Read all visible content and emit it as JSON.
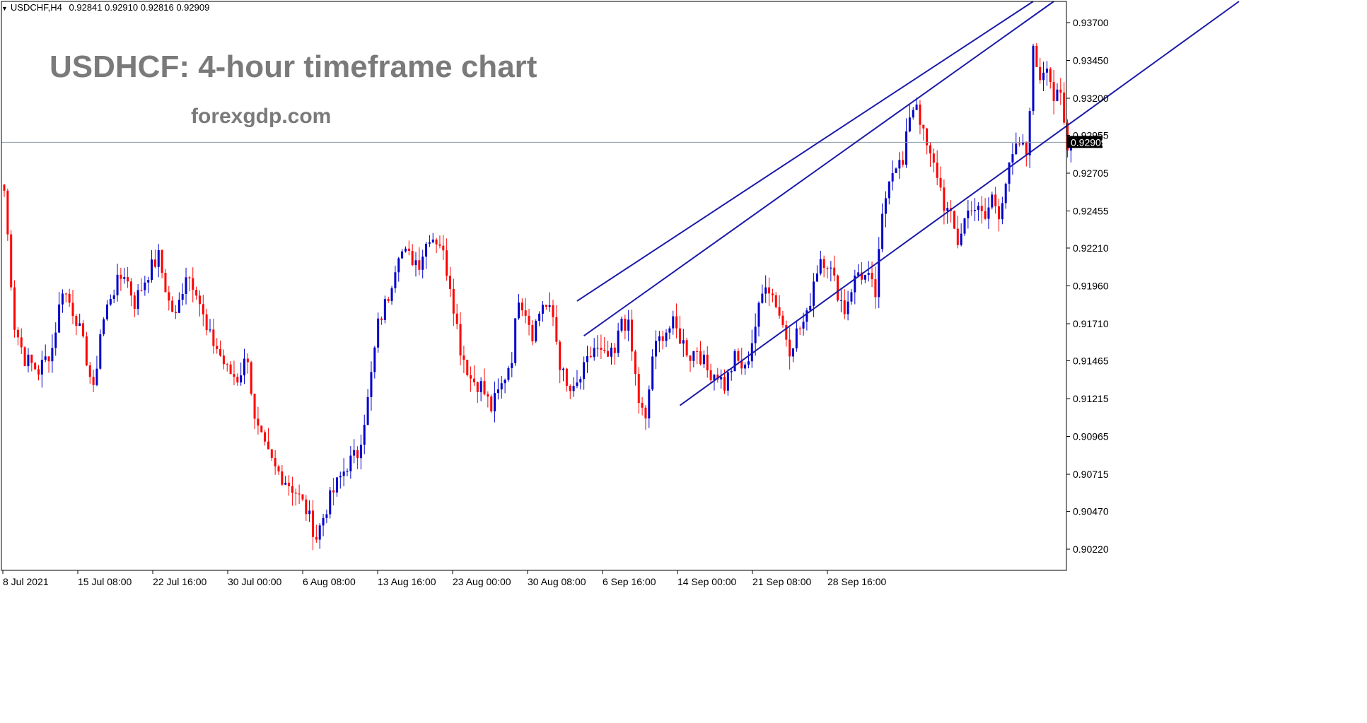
{
  "header": {
    "symbol": "USDCHF,H4",
    "quote": "0.92841 0.92910 0.92816 0.92909",
    "triangle_icon": "dropdown-triangle-icon"
  },
  "overlay": {
    "title": "USDHCF: 4-hour timeframe chart",
    "site": "forexgdp.com"
  },
  "colors": {
    "bull": "#0000cc",
    "bear": "#ff0000",
    "channel": "#1a1aa8",
    "current_price_line": "#8a9aaa",
    "price_box": "#000000",
    "frame": "#000000"
  },
  "chart_data": {
    "type": "candlestick",
    "symbol": "USDCHF",
    "timeframe": "H4",
    "current_price": "0.92909",
    "ylim": [
      0.9008,
      0.9384
    ],
    "y_ticks": [
      "0.93700",
      "0.93450",
      "0.93200",
      "0.92955",
      "0.92705",
      "0.92455",
      "0.92210",
      "0.91960",
      "0.91710",
      "0.91465",
      "0.91215",
      "0.90965",
      "0.90715",
      "0.90470",
      "0.90220"
    ],
    "x_ticks": [
      "8 Jul 2021",
      "15 Jul 08:00",
      "22 Jul 16:00",
      "30 Jul 00:00",
      "6 Aug 08:00",
      "13 Aug 16:00",
      "23 Aug 00:00",
      "30 Aug 08:00",
      "6 Sep 16:00",
      "14 Sep 00:00",
      "21 Sep 08:00",
      "28 Sep 16:00"
    ],
    "path": [
      [
        0,
        0.9259
      ],
      [
        3,
        0.917
      ],
      [
        6,
        0.9148
      ],
      [
        10,
        0.914
      ],
      [
        14,
        0.9155
      ],
      [
        17,
        0.9195
      ],
      [
        21,
        0.9175
      ],
      [
        24,
        0.9148
      ],
      [
        26,
        0.9125
      ],
      [
        28,
        0.9165
      ],
      [
        31,
        0.919
      ],
      [
        35,
        0.9205
      ],
      [
        38,
        0.9185
      ],
      [
        42,
        0.9205
      ],
      [
        45,
        0.9215
      ],
      [
        48,
        0.9185
      ],
      [
        50,
        0.9175
      ],
      [
        53,
        0.9205
      ],
      [
        56,
        0.9195
      ],
      [
        59,
        0.9165
      ],
      [
        62,
        0.9155
      ],
      [
        65,
        0.914
      ],
      [
        68,
        0.9135
      ],
      [
        71,
        0.915
      ],
      [
        73,
        0.9105
      ],
      [
        76,
        0.9088
      ],
      [
        79,
        0.9075
      ],
      [
        82,
        0.9068
      ],
      [
        85,
        0.906
      ],
      [
        88,
        0.9048
      ],
      [
        91,
        0.903
      ],
      [
        94,
        0.905
      ],
      [
        97,
        0.9065
      ],
      [
        100,
        0.9078
      ],
      [
        103,
        0.9085
      ],
      [
        106,
        0.912
      ],
      [
        109,
        0.917
      ],
      [
        112,
        0.919
      ],
      [
        115,
        0.922
      ],
      [
        118,
        0.9215
      ],
      [
        121,
        0.9212
      ],
      [
        124,
        0.923
      ],
      [
        127,
        0.9225
      ],
      [
        130,
        0.9198
      ],
      [
        133,
        0.9155
      ],
      [
        136,
        0.9135
      ],
      [
        139,
        0.913
      ],
      [
        142,
        0.9115
      ],
      [
        145,
        0.913
      ],
      [
        148,
        0.915
      ],
      [
        150,
        0.919
      ],
      [
        152,
        0.918
      ],
      [
        154,
        0.9165
      ],
      [
        157,
        0.9185
      ],
      [
        160,
        0.9175
      ],
      [
        162,
        0.9145
      ],
      [
        164,
        0.9128
      ],
      [
        166,
        0.9125
      ],
      [
        169,
        0.914
      ],
      [
        172,
        0.9155
      ],
      [
        175,
        0.9148
      ],
      [
        178,
        0.915
      ],
      [
        180,
        0.9175
      ],
      [
        182,
        0.9168
      ],
      [
        185,
        0.912
      ],
      [
        187,
        0.9105
      ],
      [
        189,
        0.915
      ],
      [
        192,
        0.9165
      ],
      [
        195,
        0.917
      ],
      [
        198,
        0.9158
      ],
      [
        200,
        0.915
      ],
      [
        202,
        0.9155
      ],
      [
        205,
        0.914
      ],
      [
        208,
        0.9138
      ],
      [
        210,
        0.913
      ],
      [
        213,
        0.9148
      ],
      [
        216,
        0.914
      ],
      [
        219,
        0.917
      ],
      [
        222,
        0.92
      ],
      [
        225,
        0.9185
      ],
      [
        227,
        0.917
      ],
      [
        229,
        0.9155
      ],
      [
        231,
        0.9165
      ],
      [
        234,
        0.9175
      ],
      [
        236,
        0.92
      ],
      [
        238,
        0.9215
      ],
      [
        240,
        0.9212
      ],
      [
        243,
        0.9192
      ],
      [
        245,
        0.918
      ],
      [
        247,
        0.9195
      ],
      [
        249,
        0.9205
      ],
      [
        252,
        0.92
      ],
      [
        254,
        0.919
      ],
      [
        256,
        0.924
      ],
      [
        258,
        0.927
      ],
      [
        260,
        0.9278
      ],
      [
        262,
        0.9275
      ],
      [
        264,
        0.931
      ],
      [
        266,
        0.9318
      ],
      [
        268,
        0.9295
      ],
      [
        270,
        0.928
      ],
      [
        272,
        0.927
      ],
      [
        274,
        0.925
      ],
      [
        276,
        0.924
      ],
      [
        278,
        0.9225
      ],
      [
        280,
        0.924
      ],
      [
        282,
        0.925
      ],
      [
        284,
        0.9245
      ],
      [
        286,
        0.924
      ],
      [
        288,
        0.9255
      ],
      [
        290,
        0.9245
      ],
      [
        292,
        0.9265
      ],
      [
        294,
        0.928
      ],
      [
        296,
        0.929
      ],
      [
        298,
        0.9283
      ],
      [
        300,
        0.935
      ],
      [
        302,
        0.9335
      ],
      [
        304,
        0.9345
      ],
      [
        306,
        0.932
      ],
      [
        308,
        0.932
      ],
      [
        310,
        0.9285
      ],
      [
        311,
        0.9291
      ]
    ],
    "channel_lines": [
      {
        "name": "upper",
        "from": [
          167,
          0.9186
        ],
        "to": [
          300,
          0.9384
        ]
      },
      {
        "name": "middle",
        "from": [
          169,
          0.9163
        ],
        "to": [
          306,
          0.9384
        ]
      },
      {
        "name": "lower",
        "from": [
          197,
          0.9117
        ],
        "to": [
          360,
          0.9384
        ]
      }
    ]
  }
}
